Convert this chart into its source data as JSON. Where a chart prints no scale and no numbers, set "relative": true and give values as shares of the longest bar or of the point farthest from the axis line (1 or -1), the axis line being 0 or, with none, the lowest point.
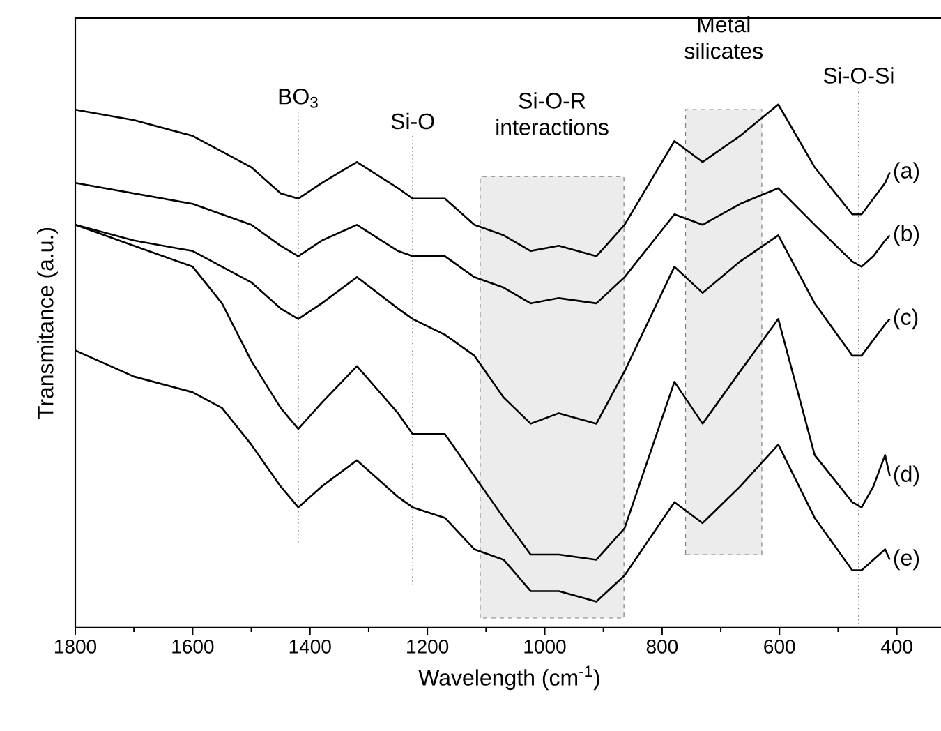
{
  "chart_data": {
    "type": "line",
    "relative": true,
    "xlabel": "Wavelength (cm$^{-1}$)",
    "ylabel": "Transmitance (a.u.)",
    "xlim": [
      1800,
      320
    ],
    "xticks": [
      1800,
      1600,
      1400,
      1200,
      1000,
      800,
      600,
      400
    ],
    "grid": false,
    "line_style": "solid",
    "x": [
      1800,
      1700,
      1600,
      1550,
      1500,
      1450,
      1420,
      1380,
      1320,
      1250,
      1225,
      1170,
      1120,
      1070,
      1024,
      976,
      912,
      864,
      779,
      731,
      667,
      602,
      540,
      476,
      460,
      440,
      420,
      412
    ],
    "series": [
      {
        "name": "(a)",
        "color": "#000000",
        "values": [
          0.99,
          0.97,
          0.94,
          0.91,
          0.88,
          0.83,
          0.82,
          0.85,
          0.89,
          0.84,
          0.82,
          0.82,
          0.77,
          0.75,
          0.72,
          0.73,
          0.71,
          0.77,
          0.93,
          0.89,
          0.94,
          1.0,
          0.88,
          0.79,
          0.79,
          0.82,
          0.85,
          0.87
        ]
      },
      {
        "name": "(b)",
        "color": "#000000",
        "values": [
          0.85,
          0.83,
          0.81,
          0.79,
          0.77,
          0.73,
          0.71,
          0.74,
          0.77,
          0.72,
          0.71,
          0.71,
          0.67,
          0.65,
          0.62,
          0.63,
          0.62,
          0.67,
          0.79,
          0.77,
          0.81,
          0.84,
          0.77,
          0.7,
          0.69,
          0.71,
          0.74,
          0.75
        ]
      },
      {
        "name": "(c)",
        "color": "#000000",
        "values": [
          0.77,
          0.74,
          0.72,
          0.69,
          0.66,
          0.61,
          0.59,
          0.62,
          0.67,
          0.61,
          0.59,
          0.56,
          0.52,
          0.44,
          0.39,
          0.41,
          0.39,
          0.49,
          0.69,
          0.64,
          0.7,
          0.75,
          0.62,
          0.52,
          0.52,
          0.55,
          0.58,
          0.59
        ]
      },
      {
        "name": "(d)",
        "color": "#000000",
        "values": [
          0.77,
          0.73,
          0.69,
          0.62,
          0.51,
          0.42,
          0.38,
          0.43,
          0.5,
          0.41,
          0.37,
          0.37,
          0.29,
          0.21,
          0.14,
          0.14,
          0.13,
          0.19,
          0.47,
          0.39,
          0.49,
          0.59,
          0.33,
          0.24,
          0.23,
          0.27,
          0.33,
          0.29
        ]
      },
      {
        "name": "(e)",
        "color": "#000000",
        "values": [
          0.53,
          0.48,
          0.45,
          0.42,
          0.35,
          0.27,
          0.23,
          0.27,
          0.32,
          0.25,
          0.23,
          0.21,
          0.15,
          0.13,
          0.07,
          0.07,
          0.05,
          0.1,
          0.24,
          0.2,
          0.27,
          0.35,
          0.21,
          0.11,
          0.11,
          0.13,
          0.15,
          0.13
        ]
      }
    ],
    "ref_lines": [
      {
        "axis": "x",
        "value": 1420,
        "label": "BO$_{3}$",
        "color": "#555555",
        "line_style": "dotted"
      },
      {
        "axis": "x",
        "value": 1225,
        "label": "Si-O",
        "color": "#555555",
        "line_style": "dotted"
      },
      {
        "axis": "x",
        "value": 465,
        "label": "Si-O-Si",
        "color": "#555555",
        "line_style": "dotted"
      }
    ],
    "bands": [
      {
        "axis": "x",
        "from": 1110,
        "to": 865,
        "label": "Si-O-R interactions",
        "color": "#ececec"
      },
      {
        "axis": "x",
        "from": 760,
        "to": 630,
        "label": "Metal silicates",
        "color": "#ececec"
      }
    ]
  }
}
